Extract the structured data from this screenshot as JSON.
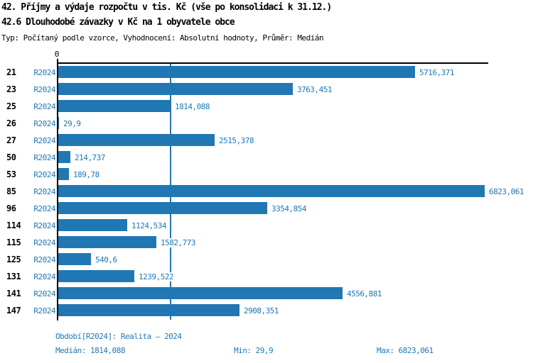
{
  "header": {
    "title_line1": "42. Příjmy a výdaje rozpočtu v tis. Kč (vše po konsolidaci k 31.12.)",
    "title_line2": "42.6 Dlouhodobé závazky v Kč na 1 obyvatele obce",
    "subtitle": "Typ: Počítaný podle vzorce, Vyhodnocení: Absolutní hodnoty, Průměr: Medián"
  },
  "axis": {
    "zero_tick_label": "0"
  },
  "colors": {
    "bar": "#2077b4",
    "blue_text": "#1f77b4",
    "axis_black": "#000000"
  },
  "chart_data": {
    "type": "bar",
    "orientation": "horizontal",
    "title": "42.6 Dlouhodobé závazky v Kč na 1 obyvatele obce",
    "xlabel": "Kč na 1 obyvatele",
    "xlim": [
      0,
      6823.061
    ],
    "grid": false,
    "series_label": "R2024",
    "categories": [
      "21",
      "23",
      "25",
      "26",
      "27",
      "50",
      "53",
      "85",
      "96",
      "114",
      "115",
      "125",
      "131",
      "141",
      "147"
    ],
    "values": [
      5716.371,
      3763.451,
      1814.088,
      29.9,
      2515.378,
      214.737,
      189.78,
      6823.061,
      3354.854,
      1124.534,
      1582.773,
      540.6,
      1239.522,
      4556.881,
      2908.351
    ],
    "value_labels": [
      "5716,371",
      "3763,451",
      "1814,088",
      "29,9",
      "2515,378",
      "214,737",
      "189,78",
      "6823,061",
      "3354,854",
      "1124,534",
      "1582,773",
      "540,6",
      "1239,522",
      "4556,881",
      "2908,351"
    ],
    "median_line_value": 1814.088
  },
  "footer": {
    "period": "Období[R2024]: Realita – 2024",
    "median": "Medián: 1814,088",
    "min": "Min: 29,9",
    "max": "Max: 6823,061"
  }
}
